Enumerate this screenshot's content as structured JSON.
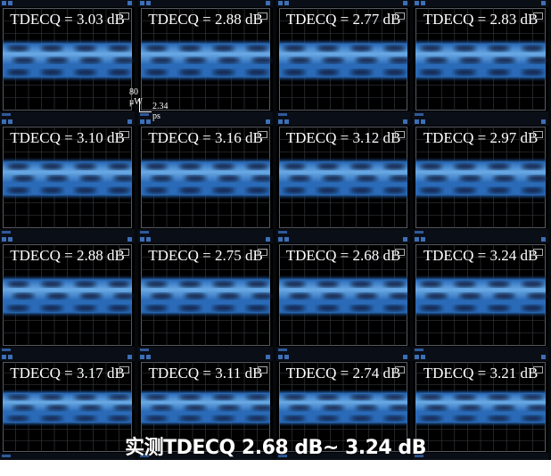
{
  "panels": [
    {
      "label": "TDECQ = 3.03 dB"
    },
    {
      "label": "TDECQ = 2.88 dB"
    },
    {
      "label": "TDECQ = 2.77 dB"
    },
    {
      "label": "TDECQ = 2.83 dB"
    },
    {
      "label": "TDECQ = 3.10 dB"
    },
    {
      "label": "TDECQ = 3.16 dB"
    },
    {
      "label": "TDECQ = 3.12 dB"
    },
    {
      "label": "TDECQ = 2.97 dB"
    },
    {
      "label": "TDECQ = 2.88 dB"
    },
    {
      "label": "TDECQ = 2.75 dB"
    },
    {
      "label": "TDECQ = 2.68 dB"
    },
    {
      "label": "TDECQ = 3.24 dB"
    },
    {
      "label": "TDECQ = 3.17 dB"
    },
    {
      "label": "TDECQ = 3.11 dB"
    },
    {
      "label": "TDECQ = 2.74 dB"
    },
    {
      "label": "TDECQ = 3.21 dB"
    }
  ],
  "scale": {
    "vertical": "80 μW",
    "horizontal": "2.34 ps"
  },
  "caption": "实测TDECQ 2.68 dB~ 3.24 dB",
  "colors": {
    "eye_bright": "#6fb2f0",
    "eye_mid": "#2c6fc0",
    "eye_dark": "#0b1e3c",
    "grid": "#3a3e44"
  }
}
